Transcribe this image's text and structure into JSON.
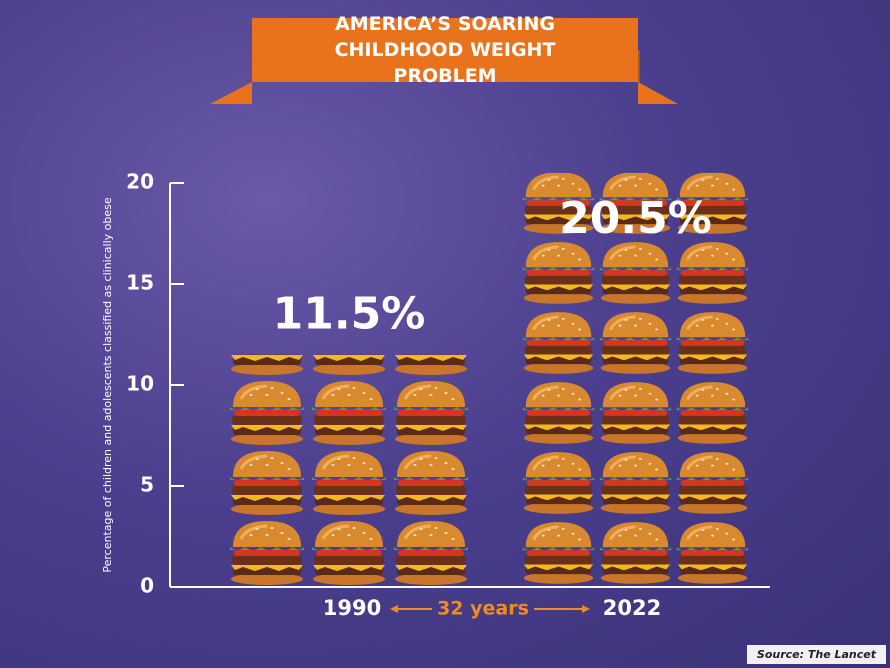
{
  "chart_data": {
    "type": "bar",
    "title": "AMERICA’S SOARING CHILDHOOD WEIGHT PROBLEM",
    "ylabel": "Percentage of children and adolescents classified as clinically obese",
    "categories": [
      "1990",
      "2022"
    ],
    "values": [
      11.5,
      20.5
    ],
    "value_labels": [
      "11.5%",
      "20.5%"
    ],
    "ylim": [
      0,
      20
    ],
    "yticks": [
      0,
      5,
      10,
      15,
      20
    ],
    "annotation": "32 years",
    "source": "Source: The Lancet"
  }
}
